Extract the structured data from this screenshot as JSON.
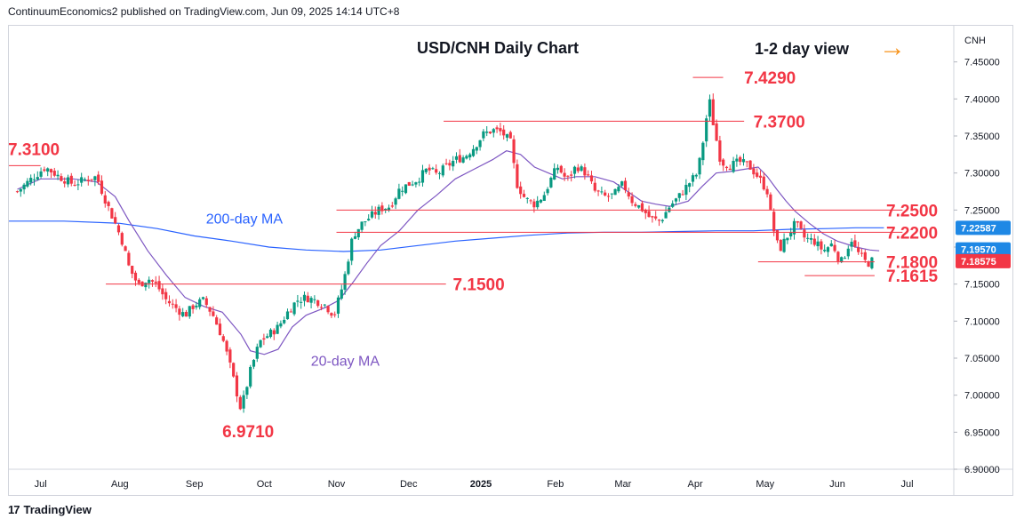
{
  "header": {
    "publisher_text": "ContinuumEconomics2 published on TradingView.com, Jun 09, 2025 14:14 UTC+8"
  },
  "footer": {
    "logo_glyph": "17",
    "brand": "TradingView"
  },
  "chart_data": {
    "type": "candlestick",
    "title": "USD/CNH Daily Chart",
    "view_label": "1-2 day view",
    "view_arrow": "→",
    "currency_badge": "CNH",
    "ylim": [
      6.9,
      7.5
    ],
    "y_ticks": [
      "7.45000",
      "7.40000",
      "7.35000",
      "7.30000",
      "7.25000",
      "7.20000",
      "7.15000",
      "7.10000",
      "7.05000",
      "7.00000",
      "6.95000",
      "6.90000"
    ],
    "y_tick_values": [
      7.45,
      7.4,
      7.35,
      7.3,
      7.25,
      7.2,
      7.15,
      7.1,
      7.05,
      7.0,
      6.95,
      6.9
    ],
    "x_ticks": [
      "Jul",
      "Aug",
      "Sep",
      "Oct",
      "Nov",
      "Dec",
      "2025",
      "Feb",
      "Mar",
      "Apr",
      "May",
      "Jun",
      "Jul"
    ],
    "x_tick_days": [
      10,
      44,
      76,
      106,
      137,
      168,
      199,
      231,
      260,
      291,
      321,
      352,
      382
    ],
    "x_range_days": [
      -4,
      402
    ],
    "levels": [
      {
        "label": "7.4290",
        "value": 7.429,
        "from_day": 290,
        "to_day": 303,
        "label_day": 312
      },
      {
        "label": "7.3700",
        "value": 7.37,
        "from_day": 183,
        "to_day": 312,
        "label_day": 316
      },
      {
        "label": "7.3100",
        "value": 7.31,
        "from_day": -4,
        "to_day": 10,
        "label_day": -4
      },
      {
        "label": "7.2500",
        "value": 7.25,
        "from_day": 137,
        "to_day": 380,
        "label_day": 373
      },
      {
        "label": "7.2200",
        "value": 7.22,
        "from_day": 137,
        "to_day": 380,
        "label_day": 373
      },
      {
        "label": "7.1800",
        "value": 7.18,
        "from_day": 318,
        "to_day": 368,
        "label_day": 373
      },
      {
        "label": "7.1615",
        "value": 7.1615,
        "from_day": 338,
        "to_day": 368,
        "label_day": 373
      },
      {
        "label": "7.1500",
        "value": 7.15,
        "from_day": 38,
        "to_day": 184,
        "label_day": 187
      },
      {
        "label": "6.9710",
        "value": 6.971,
        "from_day": null,
        "to_day": null,
        "label_day": 88
      }
    ],
    "ma_labels": [
      {
        "label": "200-day MA",
        "day": 81,
        "value": 7.232
      },
      {
        "label": "20-day MA",
        "day": 126,
        "value": 7.04
      }
    ],
    "price_badges": [
      {
        "label": "7.22587",
        "value": 7.2259,
        "color": "#1e88e5"
      },
      {
        "label": "7.19570",
        "value": 7.1957,
        "color": "#1e88e5"
      },
      {
        "label": "7.18575",
        "value": 7.1858,
        "color": "#f23645"
      }
    ],
    "colors": {
      "up": "#089981",
      "down": "#f23645",
      "level": "#f23645",
      "ma20": "#7e57c2",
      "ma200": "#2962ff",
      "accent": "#f7931a"
    },
    "price_path": [
      [
        0,
        7.275
      ],
      [
        6,
        7.292
      ],
      [
        12,
        7.308
      ],
      [
        18,
        7.295
      ],
      [
        24,
        7.285
      ],
      [
        30,
        7.292
      ],
      [
        34,
        7.295
      ],
      [
        38,
        7.262
      ],
      [
        42,
        7.232
      ],
      [
        45,
        7.208
      ],
      [
        48,
        7.172
      ],
      [
        52,
        7.148
      ],
      [
        56,
        7.158
      ],
      [
        60,
        7.148
      ],
      [
        64,
        7.128
      ],
      [
        68,
        7.118
      ],
      [
        72,
        7.108
      ],
      [
        76,
        7.122
      ],
      [
        80,
        7.128
      ],
      [
        84,
        7.108
      ],
      [
        88,
        7.078
      ],
      [
        92,
        7.032
      ],
      [
        96,
        6.98
      ],
      [
        100,
        7.032
      ],
      [
        104,
        7.072
      ],
      [
        108,
        7.082
      ],
      [
        112,
        7.092
      ],
      [
        116,
        7.112
      ],
      [
        120,
        7.128
      ],
      [
        124,
        7.132
      ],
      [
        128,
        7.128
      ],
      [
        132,
        7.122
      ],
      [
        136,
        7.108
      ],
      [
        140,
        7.152
      ],
      [
        144,
        7.215
      ],
      [
        148,
        7.232
      ],
      [
        152,
        7.242
      ],
      [
        156,
        7.252
      ],
      [
        160,
        7.255
      ],
      [
        164,
        7.278
      ],
      [
        168,
        7.285
      ],
      [
        172,
        7.292
      ],
      [
        176,
        7.305
      ],
      [
        180,
        7.298
      ],
      [
        184,
        7.308
      ],
      [
        188,
        7.318
      ],
      [
        192,
        7.322
      ],
      [
        196,
        7.335
      ],
      [
        200,
        7.352
      ],
      [
        204,
        7.358
      ],
      [
        208,
        7.355
      ],
      [
        212,
        7.34
      ],
      [
        214,
        7.288
      ],
      [
        218,
        7.265
      ],
      [
        222,
        7.258
      ],
      [
        226,
        7.27
      ],
      [
        230,
        7.298
      ],
      [
        232,
        7.308
      ],
      [
        236,
        7.29
      ],
      [
        240,
        7.31
      ],
      [
        244,
        7.3
      ],
      [
        248,
        7.275
      ],
      [
        252,
        7.268
      ],
      [
        256,
        7.27
      ],
      [
        260,
        7.285
      ],
      [
        264,
        7.262
      ],
      [
        268,
        7.252
      ],
      [
        272,
        7.238
      ],
      [
        276,
        7.235
      ],
      [
        280,
        7.255
      ],
      [
        284,
        7.268
      ],
      [
        288,
        7.285
      ],
      [
        292,
        7.3
      ],
      [
        294,
        7.335
      ],
      [
        297,
        7.4
      ],
      [
        299,
        7.362
      ],
      [
        302,
        7.315
      ],
      [
        306,
        7.31
      ],
      [
        310,
        7.315
      ],
      [
        314,
        7.31
      ],
      [
        318,
        7.295
      ],
      [
        322,
        7.275
      ],
      [
        324,
        7.232
      ],
      [
        327,
        7.195
      ],
      [
        330,
        7.212
      ],
      [
        334,
        7.232
      ],
      [
        338,
        7.212
      ],
      [
        342,
        7.208
      ],
      [
        346,
        7.195
      ],
      [
        350,
        7.205
      ],
      [
        352,
        7.188
      ],
      [
        354,
        7.18
      ],
      [
        358,
        7.212
      ],
      [
        360,
        7.195
      ],
      [
        362,
        7.188
      ],
      [
        364,
        7.18
      ],
      [
        366,
        7.178
      ],
      [
        368,
        7.186
      ]
    ],
    "ma20_path": [
      [
        0,
        7.278
      ],
      [
        10,
        7.292
      ],
      [
        24,
        7.292
      ],
      [
        34,
        7.288
      ],
      [
        42,
        7.268
      ],
      [
        48,
        7.235
      ],
      [
        56,
        7.195
      ],
      [
        64,
        7.162
      ],
      [
        72,
        7.132
      ],
      [
        80,
        7.12
      ],
      [
        88,
        7.112
      ],
      [
        96,
        7.082
      ],
      [
        100,
        7.06
      ],
      [
        106,
        7.055
      ],
      [
        112,
        7.062
      ],
      [
        118,
        7.092
      ],
      [
        124,
        7.108
      ],
      [
        132,
        7.118
      ],
      [
        138,
        7.128
      ],
      [
        144,
        7.152
      ],
      [
        150,
        7.178
      ],
      [
        156,
        7.202
      ],
      [
        164,
        7.222
      ],
      [
        172,
        7.25
      ],
      [
        180,
        7.27
      ],
      [
        188,
        7.292
      ],
      [
        196,
        7.305
      ],
      [
        204,
        7.318
      ],
      [
        210,
        7.33
      ],
      [
        216,
        7.325
      ],
      [
        222,
        7.308
      ],
      [
        228,
        7.3
      ],
      [
        234,
        7.292
      ],
      [
        240,
        7.295
      ],
      [
        248,
        7.295
      ],
      [
        256,
        7.288
      ],
      [
        262,
        7.275
      ],
      [
        268,
        7.262
      ],
      [
        274,
        7.258
      ],
      [
        280,
        7.255
      ],
      [
        288,
        7.262
      ],
      [
        294,
        7.282
      ],
      [
        300,
        7.3
      ],
      [
        306,
        7.302
      ],
      [
        312,
        7.305
      ],
      [
        318,
        7.308
      ],
      [
        322,
        7.295
      ],
      [
        326,
        7.278
      ],
      [
        330,
        7.262
      ],
      [
        334,
        7.248
      ],
      [
        340,
        7.232
      ],
      [
        346,
        7.218
      ],
      [
        352,
        7.208
      ],
      [
        360,
        7.2
      ],
      [
        366,
        7.196
      ],
      [
        370,
        7.195
      ]
    ],
    "ma200_path": [
      [
        -4,
        7.235
      ],
      [
        20,
        7.235
      ],
      [
        44,
        7.232
      ],
      [
        60,
        7.225
      ],
      [
        76,
        7.215
      ],
      [
        92,
        7.208
      ],
      [
        108,
        7.2
      ],
      [
        124,
        7.196
      ],
      [
        140,
        7.194
      ],
      [
        156,
        7.196
      ],
      [
        172,
        7.202
      ],
      [
        188,
        7.208
      ],
      [
        204,
        7.212
      ],
      [
        220,
        7.216
      ],
      [
        236,
        7.219
      ],
      [
        252,
        7.22
      ],
      [
        268,
        7.22
      ],
      [
        284,
        7.221
      ],
      [
        300,
        7.222
      ],
      [
        316,
        7.222
      ],
      [
        332,
        7.224
      ],
      [
        348,
        7.225
      ],
      [
        360,
        7.226
      ],
      [
        372,
        7.226
      ]
    ]
  }
}
